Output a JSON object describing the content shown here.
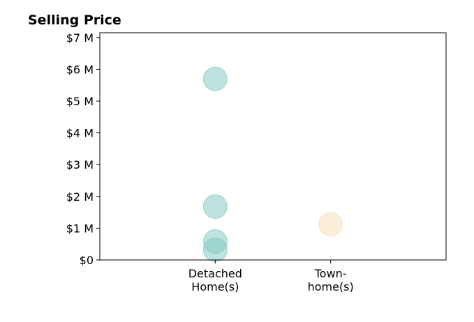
{
  "chart_data": {
    "type": "scatter",
    "title": "Selling Price",
    "xlabel": "",
    "ylabel": "",
    "categories": [
      {
        "line1": "Detached",
        "line2": "Home(s)"
      },
      {
        "line1": "Town-",
        "line2": "home(s)"
      }
    ],
    "x_range": [
      -1,
      2
    ],
    "ylim": [
      0,
      7150000
    ],
    "y_ticks": [
      {
        "value": 0,
        "label": "$0"
      },
      {
        "value": 1000000,
        "label": "$1 M"
      },
      {
        "value": 2000000,
        "label": "$2 M"
      },
      {
        "value": 3000000,
        "label": "$3 M"
      },
      {
        "value": 4000000,
        "label": "$4 M"
      },
      {
        "value": 5000000,
        "label": "$5 M"
      },
      {
        "value": 6000000,
        "label": "$6 M"
      },
      {
        "value": 7000000,
        "label": "$7 M"
      }
    ],
    "grid": false,
    "series": [
      {
        "category": 0,
        "color": "#7ec8c0",
        "values": [
          5700000,
          1680000,
          580000,
          320000
        ]
      },
      {
        "category": 1,
        "color": "#f5deb3",
        "values": [
          1120000
        ]
      }
    ]
  }
}
